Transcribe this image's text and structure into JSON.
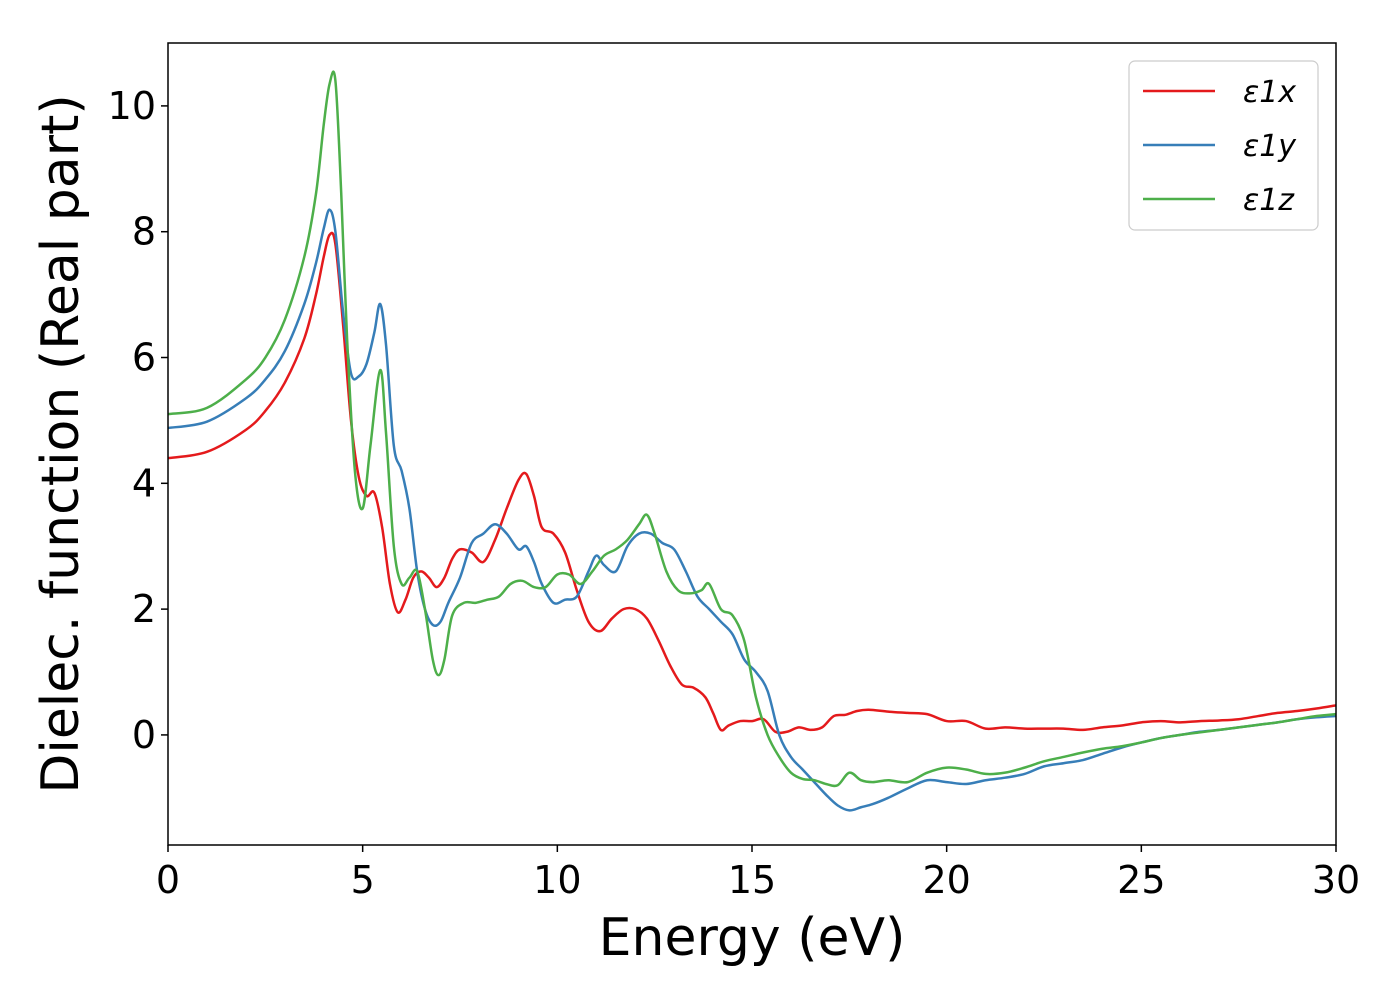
{
  "chart_data": {
    "type": "line",
    "title": "",
    "xlabel": "Energy (eV)",
    "ylabel": "Dielec. function (Real part)",
    "xlim": [
      0,
      30
    ],
    "ylim": [
      -1.75,
      11.0
    ],
    "xticks": [
      0,
      5,
      10,
      15,
      20,
      25,
      30
    ],
    "yticks": [
      0,
      2,
      4,
      6,
      8,
      10
    ],
    "grid": false,
    "legend_position": "top-right",
    "series": [
      {
        "name": "ε1x",
        "color": "#e41a1c",
        "x": [
          0,
          1,
          2,
          2.5,
          3,
          3.5,
          3.8,
          4.0,
          4.15,
          4.3,
          4.5,
          4.7,
          4.9,
          5.1,
          5.3,
          5.5,
          5.7,
          5.9,
          6.1,
          6.3,
          6.5,
          6.7,
          6.9,
          7.1,
          7.3,
          7.5,
          7.8,
          8.1,
          8.4,
          8.7,
          9.0,
          9.2,
          9.4,
          9.6,
          9.9,
          10.2,
          10.5,
          10.8,
          11.1,
          11.4,
          11.7,
          12.0,
          12.3,
          12.6,
          12.9,
          13.2,
          13.5,
          13.8,
          14.0,
          14.2,
          14.4,
          14.7,
          15.0,
          15.3,
          15.6,
          15.9,
          16.2,
          16.5,
          16.8,
          17.1,
          17.4,
          17.7,
          18.0,
          18.5,
          19.0,
          19.5,
          20.0,
          20.5,
          21.0,
          21.5,
          22.0,
          22.5,
          23.0,
          23.5,
          24.0,
          24.5,
          25.0,
          25.5,
          26.0,
          26.5,
          27.0,
          27.5,
          28.0,
          28.5,
          29.0,
          29.5,
          30.0
        ],
        "y": [
          4.4,
          4.5,
          4.85,
          5.15,
          5.6,
          6.3,
          7.0,
          7.6,
          7.95,
          7.8,
          6.5,
          5.0,
          4.1,
          3.8,
          3.85,
          3.3,
          2.4,
          1.95,
          2.15,
          2.5,
          2.6,
          2.5,
          2.35,
          2.5,
          2.8,
          2.95,
          2.9,
          2.75,
          3.1,
          3.6,
          4.05,
          4.15,
          3.8,
          3.3,
          3.2,
          2.9,
          2.3,
          1.8,
          1.65,
          1.85,
          2.0,
          2.0,
          1.85,
          1.5,
          1.1,
          0.8,
          0.75,
          0.6,
          0.35,
          0.08,
          0.15,
          0.22,
          0.22,
          0.25,
          0.05,
          0.05,
          0.12,
          0.08,
          0.12,
          0.3,
          0.32,
          0.38,
          0.4,
          0.37,
          0.35,
          0.33,
          0.22,
          0.22,
          0.1,
          0.12,
          0.1,
          0.1,
          0.1,
          0.08,
          0.12,
          0.15,
          0.2,
          0.22,
          0.2,
          0.22,
          0.23,
          0.25,
          0.3,
          0.35,
          0.38,
          0.42,
          0.47
        ]
      },
      {
        "name": "ε1y",
        "color": "#377eb8",
        "x": [
          0,
          1,
          2,
          2.5,
          3,
          3.5,
          3.8,
          4.0,
          4.15,
          4.3,
          4.5,
          4.7,
          4.9,
          5.1,
          5.3,
          5.45,
          5.6,
          5.8,
          6.0,
          6.2,
          6.4,
          6.6,
          6.8,
          7.0,
          7.2,
          7.5,
          7.8,
          8.1,
          8.4,
          8.7,
          9.0,
          9.2,
          9.4,
          9.6,
          9.9,
          10.2,
          10.5,
          10.8,
          11.0,
          11.2,
          11.5,
          11.8,
          12.1,
          12.4,
          12.7,
          13.0,
          13.3,
          13.6,
          13.9,
          14.2,
          14.5,
          14.8,
          15.1,
          15.4,
          15.7,
          16.0,
          16.3,
          16.6,
          16.9,
          17.2,
          17.5,
          17.8,
          18.1,
          18.5,
          19.0,
          19.5,
          20.0,
          20.5,
          21.0,
          21.5,
          22.0,
          22.5,
          23.0,
          23.5,
          24.0,
          24.5,
          25.0,
          25.5,
          26.0,
          26.5,
          27.0,
          27.5,
          28.0,
          28.5,
          29.0,
          29.5,
          30.0
        ],
        "y": [
          4.88,
          4.98,
          5.35,
          5.65,
          6.1,
          6.85,
          7.5,
          8.05,
          8.35,
          8.0,
          6.7,
          5.75,
          5.7,
          5.9,
          6.4,
          6.85,
          6.2,
          4.6,
          4.2,
          3.6,
          2.6,
          2.0,
          1.75,
          1.8,
          2.1,
          2.5,
          3.05,
          3.2,
          3.35,
          3.2,
          2.95,
          3.0,
          2.75,
          2.4,
          2.1,
          2.15,
          2.2,
          2.6,
          2.85,
          2.7,
          2.6,
          3.0,
          3.2,
          3.2,
          3.05,
          2.95,
          2.6,
          2.2,
          2.0,
          1.8,
          1.6,
          1.2,
          1.0,
          0.7,
          0.0,
          -0.35,
          -0.55,
          -0.75,
          -0.95,
          -1.12,
          -1.2,
          -1.15,
          -1.1,
          -1.0,
          -0.85,
          -0.72,
          -0.75,
          -0.78,
          -0.72,
          -0.68,
          -0.62,
          -0.5,
          -0.45,
          -0.4,
          -0.3,
          -0.2,
          -0.12,
          -0.05,
          0.0,
          0.05,
          0.08,
          0.12,
          0.16,
          0.2,
          0.25,
          0.28,
          0.3
        ]
      },
      {
        "name": "ε1z",
        "color": "#4daf4a",
        "x": [
          0,
          1,
          2,
          2.5,
          3,
          3.5,
          3.8,
          4.0,
          4.15,
          4.3,
          4.45,
          4.6,
          4.8,
          5.0,
          5.2,
          5.45,
          5.6,
          5.8,
          6.0,
          6.2,
          6.4,
          6.6,
          6.8,
          6.95,
          7.1,
          7.3,
          7.6,
          7.9,
          8.2,
          8.5,
          8.8,
          9.1,
          9.4,
          9.7,
          10.0,
          10.3,
          10.6,
          10.9,
          11.2,
          11.5,
          11.8,
          12.1,
          12.3,
          12.5,
          12.8,
          13.1,
          13.4,
          13.7,
          13.9,
          14.2,
          14.5,
          14.8,
          15.1,
          15.4,
          15.7,
          16.0,
          16.3,
          16.6,
          16.9,
          17.2,
          17.5,
          17.8,
          18.1,
          18.5,
          19.0,
          19.5,
          20.0,
          20.5,
          21.0,
          21.5,
          22.0,
          22.5,
          23.0,
          23.5,
          24.0,
          24.5,
          25.0,
          25.5,
          26.0,
          26.5,
          27.0,
          27.5,
          28.0,
          28.5,
          29.0,
          29.5,
          30.0
        ],
        "y": [
          5.1,
          5.2,
          5.65,
          6.0,
          6.6,
          7.6,
          8.6,
          9.7,
          10.35,
          10.4,
          8.6,
          6.3,
          4.2,
          3.6,
          4.6,
          5.8,
          4.8,
          3.0,
          2.4,
          2.5,
          2.6,
          2.0,
          1.2,
          0.95,
          1.2,
          1.9,
          2.1,
          2.1,
          2.15,
          2.2,
          2.4,
          2.45,
          2.35,
          2.35,
          2.55,
          2.55,
          2.4,
          2.6,
          2.85,
          2.95,
          3.1,
          3.35,
          3.5,
          3.2,
          2.6,
          2.3,
          2.25,
          2.3,
          2.4,
          2.0,
          1.9,
          1.5,
          0.6,
          0.0,
          -0.35,
          -0.6,
          -0.7,
          -0.72,
          -0.78,
          -0.8,
          -0.6,
          -0.72,
          -0.75,
          -0.72,
          -0.75,
          -0.6,
          -0.52,
          -0.55,
          -0.62,
          -0.6,
          -0.52,
          -0.42,
          -0.35,
          -0.28,
          -0.22,
          -0.18,
          -0.12,
          -0.05,
          0.0,
          0.04,
          0.08,
          0.12,
          0.16,
          0.2,
          0.25,
          0.3,
          0.33
        ]
      }
    ]
  }
}
